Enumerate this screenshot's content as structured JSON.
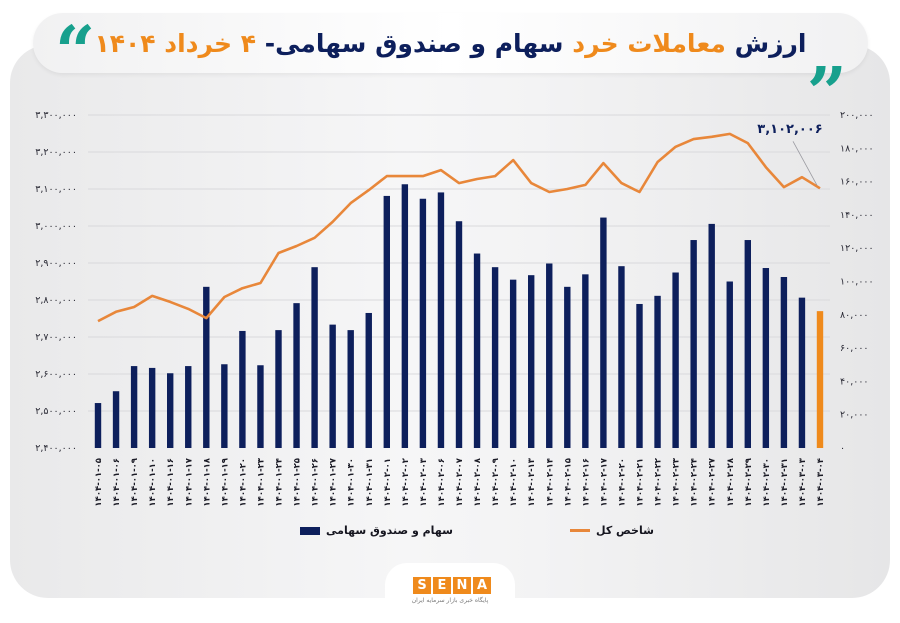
{
  "header": {
    "title_part1": "ارزش",
    "title_part2": "معاملات خرد",
    "title_part3": "سهام و صندوق سهامی-",
    "title_part4": "۴ خرداد ۱۴۰۴",
    "quote_left": "“",
    "quote_right": "“"
  },
  "colors": {
    "bar": "#0d1f5c",
    "bar_highlight": "#ef8a1c",
    "line": "#e8873a",
    "accent_teal": "#17a08d",
    "accent_orange": "#ef8a1c"
  },
  "annotation": {
    "text": "۳,۱۰۲,۰۰۶"
  },
  "legend": {
    "bars_label": "سهام و صندوق سهامی",
    "line_label": "شاخص کل"
  },
  "logo": {
    "letters": [
      "S",
      "E",
      "N",
      "A"
    ],
    "subtitle": "پایگاه خبری بازار سرمایه ایران"
  },
  "chart_data": {
    "type": "bar+line",
    "title": "ارزش معاملات خرد سهام و صندوق سهامی- ۴ خرداد ۱۴۰۴",
    "left_axis": {
      "series": "شاخص کل",
      "range": [
        2400000,
        3300000
      ],
      "ticks": [
        "۲,۴۰۰,۰۰۰",
        "۲,۵۰۰,۰۰۰",
        "۲,۶۰۰,۰۰۰",
        "۲,۷۰۰,۰۰۰",
        "۲,۸۰۰,۰۰۰",
        "۲,۹۰۰,۰۰۰",
        "۳,۰۰۰,۰۰۰",
        "۳,۱۰۰,۰۰۰",
        "۳,۲۰۰,۰۰۰",
        "۳,۳۰۰,۰۰۰"
      ]
    },
    "right_axis": {
      "series": "سهام و صندوق سهامی",
      "range": [
        0,
        200000
      ],
      "ticks": [
        "۰",
        "۲۰,۰۰۰",
        "۴۰,۰۰۰",
        "۶۰,۰۰۰",
        "۸۰,۰۰۰",
        "۱۰۰,۰۰۰",
        "۱۲۰,۰۰۰",
        "۱۴۰,۰۰۰",
        "۱۶۰,۰۰۰",
        "۱۸۰,۰۰۰",
        "۲۰۰,۰۰۰"
      ]
    },
    "grid": true,
    "legend_position": "bottom",
    "categories": [
      "۱۴۰۴-۰۱-۰۵",
      "۱۴۰۴-۰۱-۰۶",
      "۱۴۰۴-۰۱-۰۹",
      "۱۴۰۴-۰۱-۱۰",
      "۱۴۰۴-۰۱-۱۶",
      "۱۴۰۴-۰۱-۱۷",
      "۱۴۰۴-۰۱-۱۸",
      "۱۴۰۴-۰۱-۱۹",
      "۱۴۰۴-۰۱-۲۰",
      "۱۴۰۴-۰۱-۲۳",
      "۱۴۰۴-۰۱-۲۴",
      "۱۴۰۴-۰۱-۲۵",
      "۱۴۰۴-۰۱-۲۶",
      "۱۴۰۴-۰۱-۲۷",
      "۱۴۰۴-۰۱-۳۰",
      "۱۴۰۴-۰۱-۳۱",
      "۱۴۰۴-۰۲-۰۱",
      "۱۴۰۴-۰۲-۰۲",
      "۱۴۰۴-۰۲-۰۳",
      "۱۴۰۴-۰۲-۰۶",
      "۱۴۰۴-۰۲-۰۷",
      "۱۴۰۴-۰۲-۰۸",
      "۱۴۰۴-۰۲-۰۹",
      "۱۴۰۴-۰۲-۱۰",
      "۱۴۰۴-۰۲-۱۳",
      "۱۴۰۴-۰۲-۱۴",
      "۱۴۰۴-۰۲-۱۵",
      "۱۴۰۴-۰۲-۱۶",
      "۱۴۰۴-۰۲-۱۷",
      "۱۴۰۴-۰۲-۲۰",
      "۱۴۰۴-۰۲-۲۱",
      "۱۴۰۴-۰۲-۲۲",
      "۱۴۰۴-۰۲-۲۳",
      "۱۴۰۴-۰۲-۲۴",
      "۱۴۰۴-۰۲-۲۷",
      "۱۴۰۴-۰۲-۲۸",
      "۱۴۰۴-۰۲-۲۹",
      "۱۴۰۴-۰۲-۳۰",
      "۱۴۰۴-۰۲-۳۱",
      "۱۴۰۴-۰۳-۰۳",
      "۱۴۰۴-۰۳-۰۴"
    ],
    "series": [
      {
        "name": "سهام و صندوق سهامی",
        "type": "bar",
        "axis": "right",
        "values": [
          27000,
          34100,
          49200,
          48100,
          44900,
          49200,
          96800,
          50300,
          70300,
          49700,
          70800,
          87000,
          108600,
          74100,
          70800,
          81100,
          151400,
          158400,
          149700,
          153500,
          136200,
          116800,
          108600,
          101100,
          103800,
          110800,
          96800,
          104300,
          138400,
          109200,
          86500,
          91400,
          105400,
          124900,
          134600,
          100000,
          124900,
          108100,
          102700,
          90300,
          82200
        ]
      },
      {
        "name": "شاخص کل",
        "type": "line",
        "axis": "left",
        "values": [
          2743000,
          2768000,
          2781000,
          2811000,
          2795000,
          2776000,
          2751000,
          2808000,
          2832000,
          2846000,
          2927000,
          2946000,
          2968000,
          3011000,
          3062000,
          3097000,
          3135000,
          3135000,
          3135000,
          3151000,
          3116000,
          3127000,
          3135000,
          3178000,
          3116000,
          3092000,
          3100000,
          3111000,
          3170000,
          3116000,
          3092000,
          3173000,
          3214000,
          3235000,
          3241000,
          3249000,
          3224000,
          3159000,
          3105000,
          3132000,
          3102006
        ]
      }
    ],
    "annotations": [
      {
        "text": "۳,۱۰۲,۰۰۶",
        "target": "last line point"
      }
    ]
  }
}
